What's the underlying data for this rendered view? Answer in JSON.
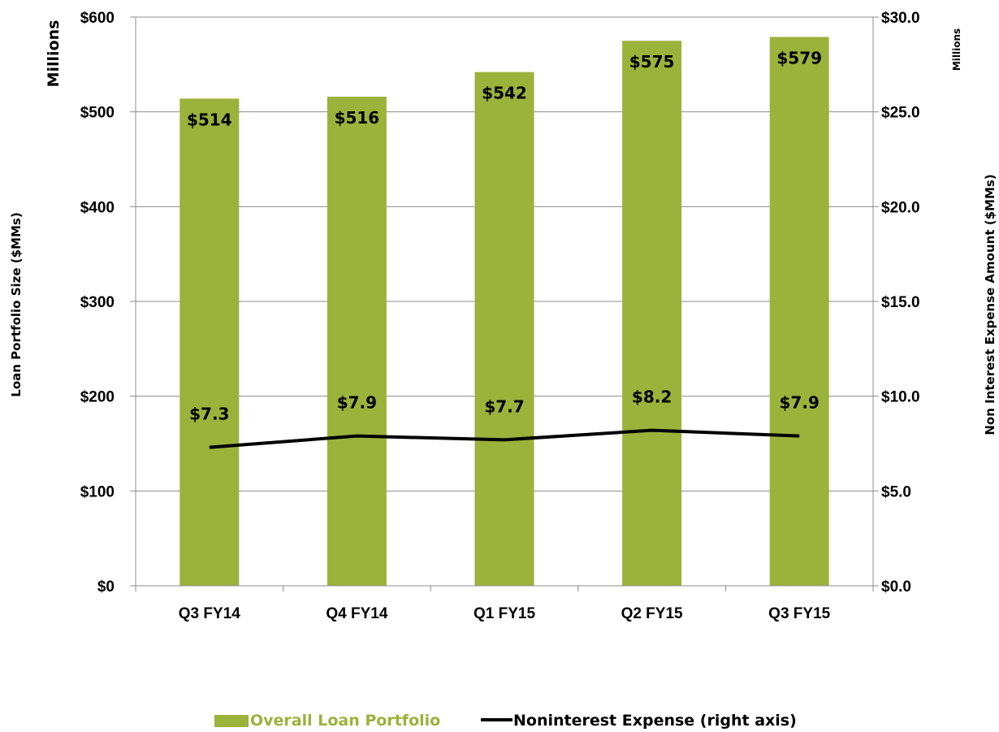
{
  "chart_data": {
    "type": "bar",
    "categories": [
      "Q3 FY14",
      "Q4 FY14",
      "Q1 FY15",
      "Q2 FY15",
      "Q3 FY15"
    ],
    "series": [
      {
        "name": "Overall Loan Portfolio",
        "type": "bar",
        "axis": "left",
        "values": [
          514,
          516,
          542,
          575,
          579
        ],
        "labels": [
          "$514",
          "$516",
          "$542",
          "$575",
          "$579"
        ],
        "color": "#9BB23B"
      },
      {
        "name": "Noninterest Expense (right axis)",
        "type": "line",
        "axis": "right",
        "values": [
          7.3,
          7.9,
          7.7,
          8.2,
          7.9
        ],
        "labels": [
          "$7.3",
          "$7.9",
          "$7.7",
          "$8.2",
          "$7.9"
        ],
        "color": "#000000"
      }
    ],
    "ylabel": "Loan Portfolio Size ($MMs)",
    "ylabel_unit": "Millions",
    "ylim": [
      0,
      600
    ],
    "yticks": [
      "$0",
      "$100",
      "$200",
      "$300",
      "$400",
      "$500",
      "$600"
    ],
    "y2label": "Non Interest Expense Amount ($MMs)",
    "y2label_unit": "Millions",
    "y2lim": [
      0,
      30
    ],
    "y2ticks": [
      "$0.0",
      "$5.0",
      "$10.0",
      "$15.0",
      "$20.0",
      "$25.0",
      "$30.0"
    ],
    "grid": true,
    "legend_position": "bottom",
    "legend_text_color": "#9BB23B"
  }
}
